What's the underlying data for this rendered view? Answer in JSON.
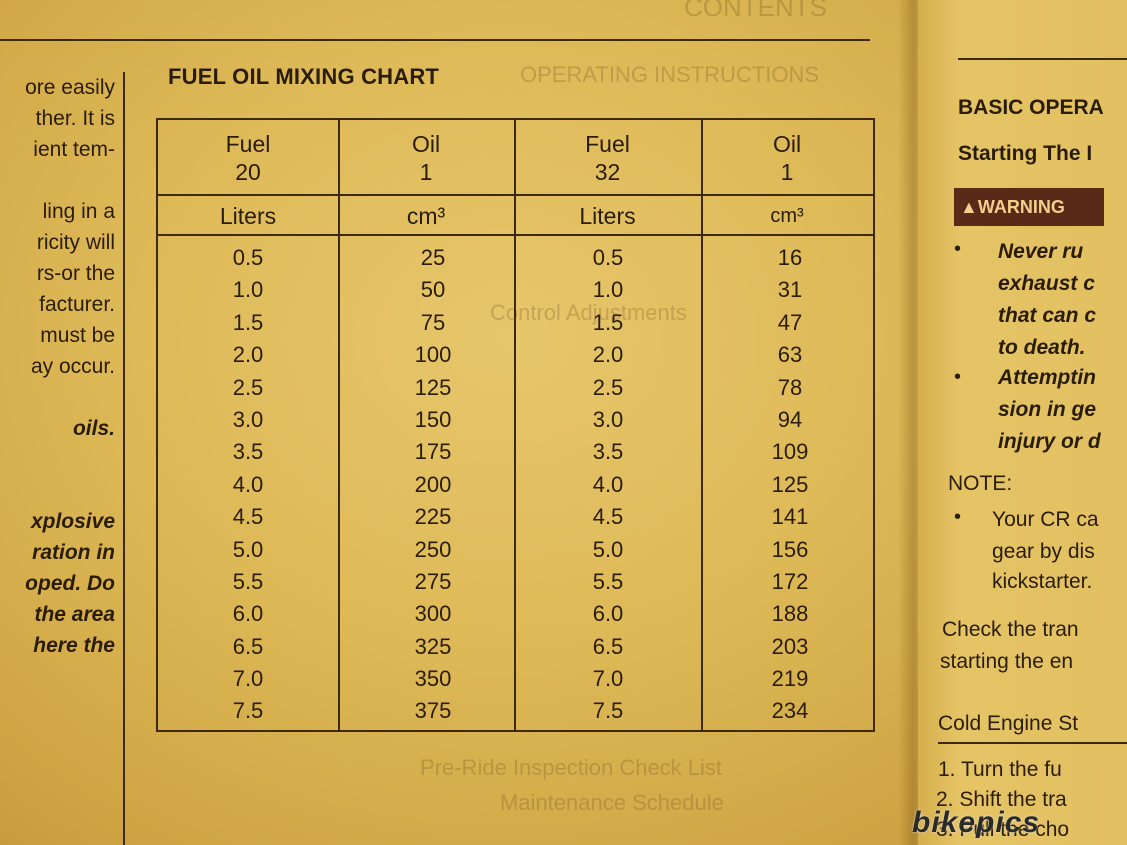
{
  "left_column": {
    "lines": [
      {
        "text": "ore easily",
        "bold": false
      },
      {
        "text": "ther. It is",
        "bold": false
      },
      {
        "text": "ient tem-",
        "bold": false
      },
      {
        "text": "",
        "bold": false
      },
      {
        "text": "ling in a",
        "bold": false
      },
      {
        "text": "ricity will",
        "bold": false
      },
      {
        "text": "rs-or the",
        "bold": false
      },
      {
        "text": "facturer.",
        "bold": false
      },
      {
        "text": "must be",
        "bold": false
      },
      {
        "text": "ay occur.",
        "bold": false
      },
      {
        "text": "",
        "bold": false
      },
      {
        "text": "oils.",
        "bold": true
      },
      {
        "text": "",
        "bold": false
      },
      {
        "text": "",
        "bold": false
      },
      {
        "text": "xplosive",
        "bold": true
      },
      {
        "text": "ration in",
        "bold": true
      },
      {
        "text": "oped. Do",
        "bold": true
      },
      {
        "text": "the area",
        "bold": true
      },
      {
        "text": "here the",
        "bold": true
      }
    ]
  },
  "chart": {
    "title": "FUEL OIL MIXING CHART",
    "ratio_headers": [
      {
        "line1": "Fuel",
        "line2": "20"
      },
      {
        "line1": "Oil",
        "line2": "1"
      },
      {
        "line1": "Fuel",
        "line2": "32"
      },
      {
        "line1": "Oil",
        "line2": "1"
      }
    ],
    "unit_headers": [
      "Liters",
      "cm³",
      "Liters",
      "cm³"
    ],
    "columns": [
      [
        "0.5",
        "1.0",
        "1.5",
        "2.0",
        "2.5",
        "3.0",
        "3.5",
        "4.0",
        "4.5",
        "5.0",
        "5.5",
        "6.0",
        "6.5",
        "7.0",
        "7.5"
      ],
      [
        "25",
        "50",
        "75",
        "100",
        "125",
        "150",
        "175",
        "200",
        "225",
        "250",
        "275",
        "300",
        "325",
        "350",
        "375"
      ],
      [
        "0.5",
        "1.0",
        "1.5",
        "2.0",
        "2.5",
        "3.0",
        "3.5",
        "4.0",
        "4.5",
        "5.0",
        "5.5",
        "6.0",
        "6.5",
        "7.0",
        "7.5"
      ],
      [
        "16",
        "31",
        "47",
        "63",
        "78",
        "94",
        "109",
        "125",
        "141",
        "156",
        "172",
        "188",
        "203",
        "219",
        "234"
      ]
    ]
  },
  "right_page": {
    "section_title": "BASIC OPERA",
    "subtitle": "Starting The I",
    "warning_label": "WARNING",
    "warning_icon": "warning-triangle-icon",
    "warning_lines": [
      "Never ru",
      "exhaust c",
      "that can c",
      "to death.",
      "Attemptin",
      "sion in ge",
      "injury or d"
    ],
    "note_label": "NOTE:",
    "note_lines": [
      "Your CR ca",
      "gear by dis",
      "kickstarter."
    ],
    "check_lines": [
      "Check the tran",
      "starting the en"
    ],
    "cold_heading": "Cold Engine St",
    "steps": [
      "1.  Turn the fu",
      "2.  Shift the tra",
      "3.  Pull the cho"
    ]
  },
  "watermark": "bikepics"
}
